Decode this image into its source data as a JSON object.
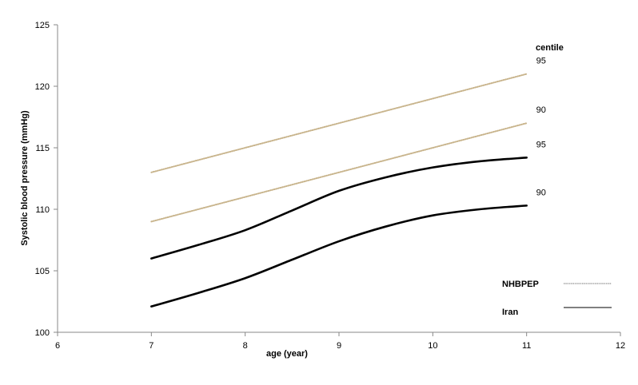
{
  "chart_data": {
    "type": "line",
    "title": "",
    "xlabel": "age (year)",
    "ylabel": "Systolic blood pressure (mmHg)",
    "xlim": [
      6,
      12
    ],
    "ylim": [
      100,
      125
    ],
    "x_ticks": [
      "6",
      "7",
      "8",
      "9",
      "10",
      "11",
      "12"
    ],
    "y_ticks": [
      "100",
      "105",
      "110",
      "115",
      "120",
      "125"
    ],
    "grid": false,
    "centile_heading": "centile",
    "legend": {
      "position": "bottom-right",
      "entries": [
        {
          "label": "NHBPEP",
          "style": "dotted"
        },
        {
          "label": "Iran",
          "style": "solid"
        }
      ]
    },
    "series": [
      {
        "group": "NHBPEP",
        "centile": "95",
        "style": "dotted",
        "color": "#c8b48c",
        "x": [
          7,
          8,
          9,
          10,
          11
        ],
        "y": [
          113,
          115,
          117,
          119,
          121
        ]
      },
      {
        "group": "NHBPEP",
        "centile": "90",
        "style": "dotted",
        "color": "#c8b48c",
        "x": [
          7,
          8,
          9,
          10,
          11
        ],
        "y": [
          109,
          111,
          113,
          115,
          117
        ]
      },
      {
        "group": "Iran",
        "centile": "95",
        "style": "solid",
        "color": "#000000",
        "x": [
          7,
          7.5,
          8,
          8.5,
          9,
          9.5,
          10,
          10.5,
          11
        ],
        "y": [
          106,
          107.1,
          108.3,
          109.9,
          111.5,
          112.6,
          113.4,
          113.9,
          114.2
        ]
      },
      {
        "group": "Iran",
        "centile": "90",
        "style": "solid",
        "color": "#000000",
        "x": [
          7,
          7.5,
          8,
          8.5,
          9,
          9.5,
          10,
          10.5,
          11
        ],
        "y": [
          102.1,
          103.2,
          104.4,
          105.9,
          107.4,
          108.6,
          109.5,
          110,
          110.3
        ]
      }
    ]
  }
}
